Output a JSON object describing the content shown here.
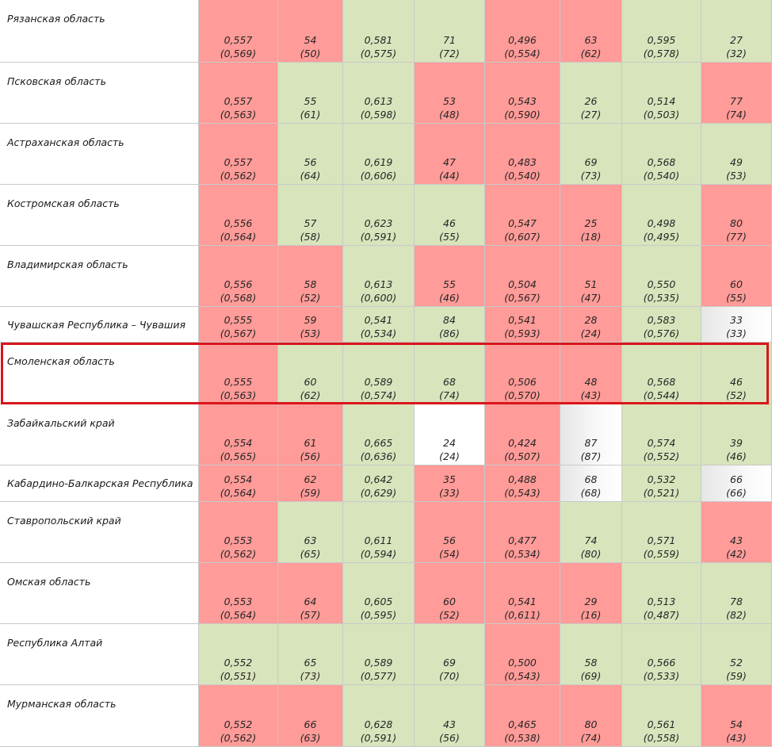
{
  "colors": {
    "red": "#ff9b98",
    "green": "#d8e4bc",
    "white": "#ffffff",
    "grey": "#e6e6e6",
    "highlight": "#d9161c"
  },
  "rows": [
    {
      "name": "Рязанская область",
      "cells": [
        {
          "v": "0,557",
          "p": "(0,569)",
          "c": "r"
        },
        {
          "v": "54",
          "p": "(50)",
          "c": "r"
        },
        {
          "v": "0,581",
          "p": "(0,575)",
          "c": "g"
        },
        {
          "v": "71",
          "p": "(72)",
          "c": "g"
        },
        {
          "v": "0,496",
          "p": "(0,554)",
          "c": "r"
        },
        {
          "v": "63",
          "p": "(62)",
          "c": "r"
        },
        {
          "v": "0,595",
          "p": "(0,578)",
          "c": "g"
        },
        {
          "v": "27",
          "p": "(32)",
          "c": "g"
        }
      ]
    },
    {
      "name": "Псковская область",
      "cells": [
        {
          "v": "0,557",
          "p": "(0,563)",
          "c": "r"
        },
        {
          "v": "55",
          "p": "(61)",
          "c": "g"
        },
        {
          "v": "0,613",
          "p": "(0,598)",
          "c": "g"
        },
        {
          "v": "53",
          "p": "(48)",
          "c": "r"
        },
        {
          "v": "0,543",
          "p": "(0,590)",
          "c": "r"
        },
        {
          "v": "26",
          "p": "(27)",
          "c": "g"
        },
        {
          "v": "0,514",
          "p": "(0,503)",
          "c": "g"
        },
        {
          "v": "77",
          "p": "(74)",
          "c": "r"
        }
      ]
    },
    {
      "name": "Астраханская область",
      "cells": [
        {
          "v": "0,557",
          "p": "(0,562)",
          "c": "r"
        },
        {
          "v": "56",
          "p": "(64)",
          "c": "g"
        },
        {
          "v": "0,619",
          "p": "(0,606)",
          "c": "g"
        },
        {
          "v": "47",
          "p": "(44)",
          "c": "r"
        },
        {
          "v": "0,483",
          "p": "(0,540)",
          "c": "r"
        },
        {
          "v": "69",
          "p": "(73)",
          "c": "g"
        },
        {
          "v": "0,568",
          "p": "(0,540)",
          "c": "g"
        },
        {
          "v": "49",
          "p": "(53)",
          "c": "g"
        }
      ]
    },
    {
      "name": "Костромская область",
      "cells": [
        {
          "v": "0,556",
          "p": "(0,564)",
          "c": "r"
        },
        {
          "v": "57",
          "p": "(58)",
          "c": "g"
        },
        {
          "v": "0,623",
          "p": "(0,591)",
          "c": "g"
        },
        {
          "v": "46",
          "p": "(55)",
          "c": "g"
        },
        {
          "v": "0,547",
          "p": "(0,607)",
          "c": "r"
        },
        {
          "v": "25",
          "p": "(18)",
          "c": "r"
        },
        {
          "v": "0,498",
          "p": "(0,495)",
          "c": "g"
        },
        {
          "v": "80",
          "p": "(77)",
          "c": "r"
        }
      ]
    },
    {
      "name": "Владимирская область",
      "cells": [
        {
          "v": "0,556",
          "p": "(0,568)",
          "c": "r"
        },
        {
          "v": "58",
          "p": "(52)",
          "c": "r"
        },
        {
          "v": "0,613",
          "p": "(0,600)",
          "c": "g"
        },
        {
          "v": "55",
          "p": "(46)",
          "c": "r"
        },
        {
          "v": "0,504",
          "p": "(0,567)",
          "c": "r"
        },
        {
          "v": "51",
          "p": "(47)",
          "c": "r"
        },
        {
          "v": "0,550",
          "p": "(0,535)",
          "c": "g"
        },
        {
          "v": "60",
          "p": "(55)",
          "c": "r"
        }
      ]
    },
    {
      "name": "Чувашская Республика – Чувашия",
      "cells": [
        {
          "v": "0,555",
          "p": "(0,567)",
          "c": "r"
        },
        {
          "v": "59",
          "p": "(53)",
          "c": "r"
        },
        {
          "v": "0,541",
          "p": "(0,534)",
          "c": "g"
        },
        {
          "v": "84",
          "p": "(86)",
          "c": "g"
        },
        {
          "v": "0,541",
          "p": "(0,593)",
          "c": "r"
        },
        {
          "v": "28",
          "p": "(24)",
          "c": "r"
        },
        {
          "v": "0,583",
          "p": "(0,576)",
          "c": "g"
        },
        {
          "v": "33",
          "p": "(33)",
          "c": "gw"
        }
      ]
    },
    {
      "name": "Смоленская область",
      "cells": [
        {
          "v": "0,555",
          "p": "(0,563)",
          "c": "r"
        },
        {
          "v": "60",
          "p": "(62)",
          "c": "g"
        },
        {
          "v": "0,589",
          "p": "(0,574)",
          "c": "g"
        },
        {
          "v": "68",
          "p": "(74)",
          "c": "g"
        },
        {
          "v": "0,506",
          "p": "(0,570)",
          "c": "r"
        },
        {
          "v": "48",
          "p": "(43)",
          "c": "r"
        },
        {
          "v": "0,568",
          "p": "(0,544)",
          "c": "g"
        },
        {
          "v": "46",
          "p": "(52)",
          "c": "g"
        }
      ]
    },
    {
      "name": "Забайкальский край",
      "cells": [
        {
          "v": "0,554",
          "p": "(0,565)",
          "c": "r"
        },
        {
          "v": "61",
          "p": "(56)",
          "c": "r"
        },
        {
          "v": "0,665",
          "p": "(0,636)",
          "c": "g"
        },
        {
          "v": "24",
          "p": "(24)",
          "c": "w"
        },
        {
          "v": "0,424",
          "p": "(0,507)",
          "c": "r"
        },
        {
          "v": "87",
          "p": "(87)",
          "c": "gw"
        },
        {
          "v": "0,574",
          "p": "(0,552)",
          "c": "g"
        },
        {
          "v": "39",
          "p": "(46)",
          "c": "g"
        }
      ]
    },
    {
      "name": "Кабардино-Балкарская Республика",
      "cells": [
        {
          "v": "0,554",
          "p": "(0,564)",
          "c": "r"
        },
        {
          "v": "62",
          "p": "(59)",
          "c": "r"
        },
        {
          "v": "0,642",
          "p": "(0,629)",
          "c": "g"
        },
        {
          "v": "35",
          "p": "(33)",
          "c": "r"
        },
        {
          "v": "0,488",
          "p": "(0,543)",
          "c": "r"
        },
        {
          "v": "68",
          "p": "(68)",
          "c": "gw"
        },
        {
          "v": "0,532",
          "p": "(0,521)",
          "c": "g"
        },
        {
          "v": "66",
          "p": "(66)",
          "c": "gw"
        }
      ]
    },
    {
      "name": "Ставропольский край",
      "cells": [
        {
          "v": "0,553",
          "p": "(0,562)",
          "c": "r"
        },
        {
          "v": "63",
          "p": "(65)",
          "c": "g"
        },
        {
          "v": "0,611",
          "p": "(0,594)",
          "c": "g"
        },
        {
          "v": "56",
          "p": "(54)",
          "c": "r"
        },
        {
          "v": "0,477",
          "p": "(0,534)",
          "c": "r"
        },
        {
          "v": "74",
          "p": "(80)",
          "c": "g"
        },
        {
          "v": "0,571",
          "p": "(0,559)",
          "c": "g"
        },
        {
          "v": "43",
          "p": "(42)",
          "c": "r"
        }
      ]
    },
    {
      "name": "Омская область",
      "cells": [
        {
          "v": "0,553",
          "p": "(0,564)",
          "c": "r"
        },
        {
          "v": "64",
          "p": "(57)",
          "c": "r"
        },
        {
          "v": "0,605",
          "p": "(0,595)",
          "c": "g"
        },
        {
          "v": "60",
          "p": "(52)",
          "c": "r"
        },
        {
          "v": "0,541",
          "p": "(0,611)",
          "c": "r"
        },
        {
          "v": "29",
          "p": "(16)",
          "c": "r"
        },
        {
          "v": "0,513",
          "p": "(0,487)",
          "c": "g"
        },
        {
          "v": "78",
          "p": "(82)",
          "c": "g"
        }
      ]
    },
    {
      "name": "Республика Алтай",
      "cells": [
        {
          "v": "0,552",
          "p": "(0,551)",
          "c": "g"
        },
        {
          "v": "65",
          "p": "(73)",
          "c": "g"
        },
        {
          "v": "0,589",
          "p": "(0,577)",
          "c": "g"
        },
        {
          "v": "69",
          "p": "(70)",
          "c": "g"
        },
        {
          "v": "0,500",
          "p": "(0,543)",
          "c": "r"
        },
        {
          "v": "58",
          "p": "(69)",
          "c": "g"
        },
        {
          "v": "0,566",
          "p": "(0,533)",
          "c": "g"
        },
        {
          "v": "52",
          "p": "(59)",
          "c": "g"
        }
      ]
    },
    {
      "name": "Мурманская область",
      "cells": [
        {
          "v": "0,552",
          "p": "(0,562)",
          "c": "r"
        },
        {
          "v": "66",
          "p": "(63)",
          "c": "r"
        },
        {
          "v": "0,628",
          "p": "(0,591)",
          "c": "g"
        },
        {
          "v": "43",
          "p": "(56)",
          "c": "g"
        },
        {
          "v": "0,465",
          "p": "(0,538)",
          "c": "r"
        },
        {
          "v": "80",
          "p": "(74)",
          "c": "r"
        },
        {
          "v": "0,561",
          "p": "(0,558)",
          "c": "g"
        },
        {
          "v": "54",
          "p": "(43)",
          "c": "r"
        }
      ]
    }
  ],
  "highlighted_row": "Смоленская область"
}
